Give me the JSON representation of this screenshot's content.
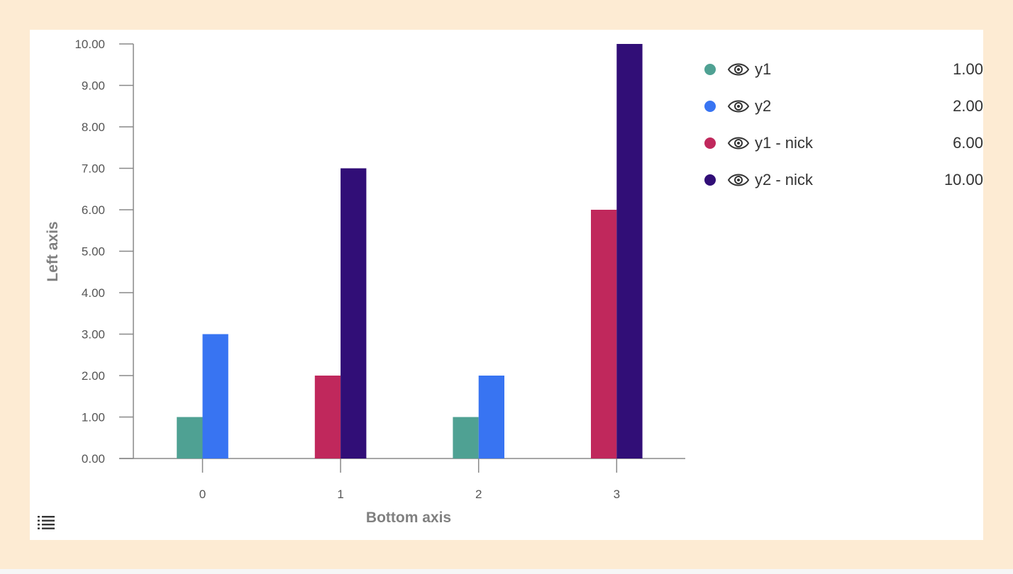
{
  "chart_data": {
    "type": "bar",
    "categories": [
      "0",
      "1",
      "2",
      "3"
    ],
    "series": [
      {
        "name": "y1",
        "color": "#4fa193",
        "values": [
          1,
          0,
          1,
          0
        ]
      },
      {
        "name": "y2",
        "color": "#3874f2",
        "values": [
          3,
          0,
          2,
          0
        ]
      },
      {
        "name": "y1 - nick",
        "color": "#c0285c",
        "values": [
          0,
          2,
          0,
          6
        ]
      },
      {
        "name": "y2 - nick",
        "color": "#310e77",
        "values": [
          0,
          7,
          0,
          10
        ]
      }
    ],
    "ylim": [
      0,
      10
    ],
    "yticks": [
      "0.00",
      "1.00",
      "2.00",
      "3.00",
      "4.00",
      "5.00",
      "6.00",
      "7.00",
      "8.00",
      "9.00",
      "10.00"
    ],
    "xlabel": "Bottom axis",
    "ylabel": "Left axis",
    "grid": false,
    "legend_placement": "right"
  },
  "legend": {
    "items": [
      {
        "label": "y1",
        "value": "1.00",
        "color": "#4fa193",
        "icon": "eye-icon"
      },
      {
        "label": "y2",
        "value": "2.00",
        "color": "#3874f2",
        "icon": "eye-icon"
      },
      {
        "label": "y1 - nick",
        "value": "6.00",
        "color": "#c0285c",
        "icon": "eye-icon"
      },
      {
        "label": "y2 - nick",
        "value": "10.00",
        "color": "#310e77",
        "icon": "eye-icon"
      }
    ]
  },
  "toolbar": {
    "data_table_icon": "list-icon"
  },
  "theme": {
    "page_background": "#fdebd3",
    "panel_background": "#ffffff",
    "axis_color": "#888888"
  }
}
